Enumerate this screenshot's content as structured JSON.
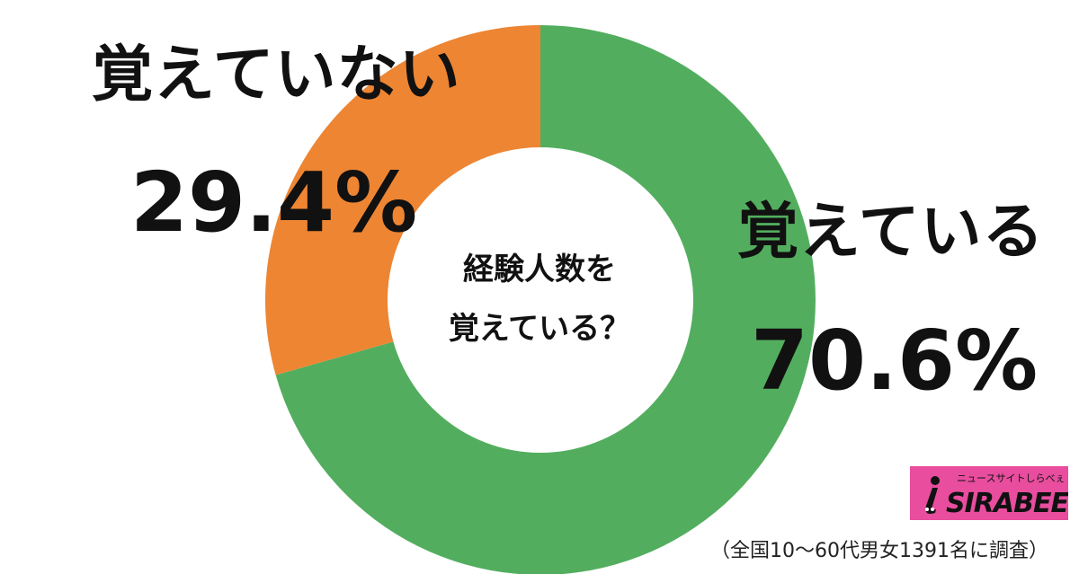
{
  "chart_data": {
    "type": "pie",
    "title": "経験人数を覚えている？",
    "center_title_lines": [
      "経験人数を",
      "覚えている？"
    ],
    "slices": [
      {
        "name": "覚えている",
        "value": 70.6,
        "label": "70.6%",
        "color": "#52ae5e"
      },
      {
        "name": "覚えていない",
        "value": 29.4,
        "label": "29.4%",
        "color": "#ed8533"
      }
    ],
    "start": "12 o'clock",
    "direction": "clockwise",
    "style": "donut"
  },
  "logo": {
    "tagline": "ニュースサイトしらべぇ",
    "wordmark": "SIRABEE",
    "background_color": "#e84d9e"
  },
  "survey_note": "（全国10〜60代男女1391名に調査）"
}
